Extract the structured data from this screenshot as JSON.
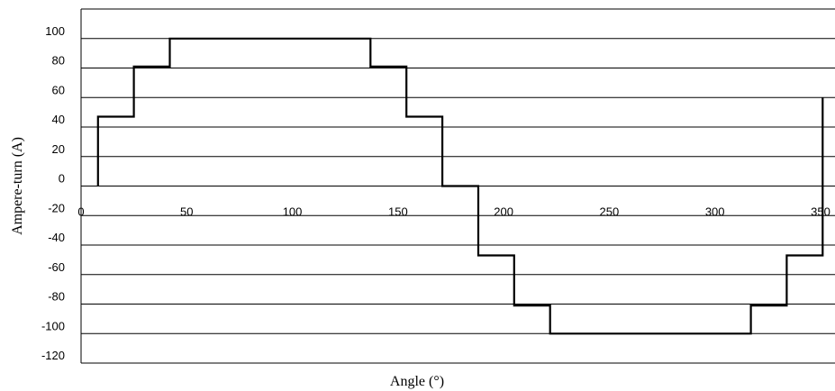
{
  "chart_data": {
    "type": "line",
    "title": "",
    "xlabel": "Angle (°)",
    "ylabel": "Ampere-turn (A)",
    "xlim": [
      0,
      355
    ],
    "ylim": [
      -120,
      120
    ],
    "x_ticks": [
      0,
      50,
      100,
      150,
      200,
      250,
      300,
      350
    ],
    "y_ticks": [
      -120,
      -100,
      -80,
      -60,
      -40,
      -20,
      0,
      20,
      40,
      60,
      80,
      100
    ],
    "grid": "horizontal",
    "legend": "none",
    "series": [
      {
        "step": true,
        "x": [
          8,
          25,
          42,
          137,
          154,
          171,
          188,
          205,
          222,
          317,
          334,
          351
        ],
        "y": [
          47,
          81,
          100,
          81,
          47,
          0,
          -47,
          -81,
          -100,
          -81,
          -47,
          0
        ],
        "end_x": 351,
        "start_y": 0,
        "color": "#000000"
      }
    ]
  }
}
